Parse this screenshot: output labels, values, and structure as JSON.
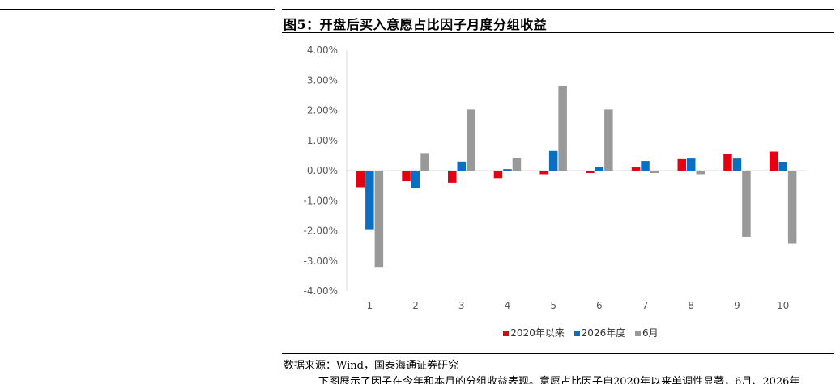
{
  "figure": {
    "title": "图5：开盘后买入意愿占比因子月度分组收益",
    "source": "数据来源：Wind，国泰海通证券研究",
    "partial_text": "下图展示了因子在今年和本月的分组收益表现。意愿占比因子自2020年以来单调性显著，6月、2026年"
  },
  "colors": {
    "series_2020": "#e50012",
    "series_2026": "#0a6fc0",
    "series_june": "#999999",
    "grid": "#d9d9d9",
    "axis_text": "#595959"
  },
  "chart_data": {
    "type": "bar",
    "title": "",
    "xlabel": "",
    "ylabel": "",
    "categories": [
      "1",
      "2",
      "3",
      "4",
      "5",
      "6",
      "7",
      "8",
      "9",
      "10"
    ],
    "series": [
      {
        "name": "2020年以来",
        "values": [
          -0.55,
          -0.35,
          -0.4,
          -0.25,
          -0.12,
          -0.08,
          0.12,
          0.38,
          0.55,
          0.63
        ]
      },
      {
        "name": "2026年度",
        "values": [
          -1.95,
          -0.58,
          0.3,
          0.05,
          0.65,
          0.12,
          0.32,
          0.4,
          0.4,
          0.28
        ]
      },
      {
        "name": "6月",
        "values": [
          -3.2,
          0.58,
          2.03,
          0.43,
          2.82,
          2.03,
          -0.08,
          -0.12,
          -2.2,
          -2.43
        ]
      }
    ],
    "ylim": [
      -4.0,
      4.0
    ],
    "yticks": [
      -4.0,
      -3.0,
      -2.0,
      -1.0,
      0.0,
      1.0,
      2.0,
      3.0,
      4.0
    ],
    "ytick_labels": [
      "-4.00%",
      "-3.00%",
      "-2.00%",
      "-1.00%",
      "0.00%",
      "1.00%",
      "2.00%",
      "3.00%",
      "4.00%"
    ],
    "grid": false,
    "legend_position": "bottom"
  }
}
